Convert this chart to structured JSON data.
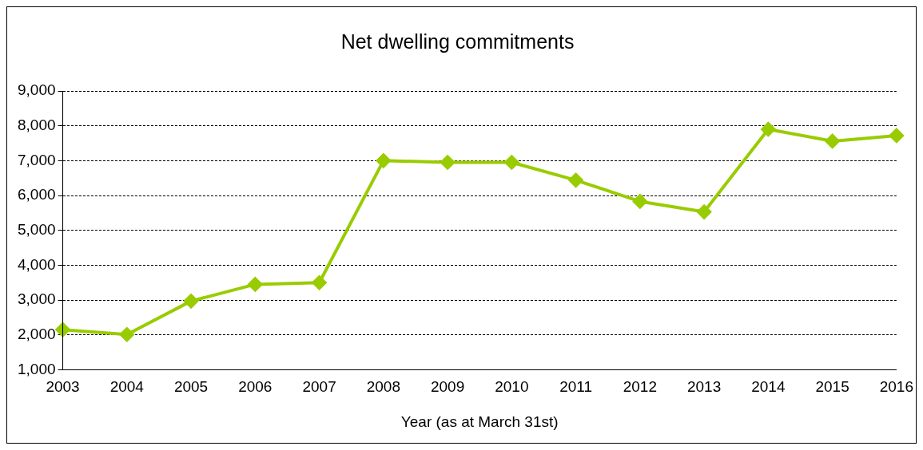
{
  "chart_data": {
    "type": "line",
    "title": "Net dwelling commitments",
    "xlabel": "Year (as at March 31st)",
    "categories": [
      "2003",
      "2004",
      "2005",
      "2006",
      "2007",
      "2008",
      "2009",
      "2010",
      "2011",
      "2012",
      "2013",
      "2014",
      "2015",
      "2016"
    ],
    "series": [
      {
        "color": "#99cc00",
        "values": [
          2150,
          2010,
          2970,
          3450,
          3500,
          7000,
          6950,
          6950,
          6440,
          5830,
          5530,
          7900,
          7560,
          7720
        ]
      }
    ],
    "ylim": [
      1000,
      9000
    ],
    "yticks": [
      {
        "value": 1000,
        "label": "1,000"
      },
      {
        "value": 2000,
        "label": "2,000"
      },
      {
        "value": 3000,
        "label": "3,000"
      },
      {
        "value": 4000,
        "label": "4,000"
      },
      {
        "value": 5000,
        "label": "5,000"
      },
      {
        "value": 6000,
        "label": "6,000"
      },
      {
        "value": 7000,
        "label": "7,000"
      },
      {
        "value": 8000,
        "label": "8,000"
      },
      {
        "value": 9000,
        "label": "9,000"
      }
    ],
    "grid": "y",
    "legend": false,
    "marker": "diamond",
    "line_style": "solid"
  }
}
